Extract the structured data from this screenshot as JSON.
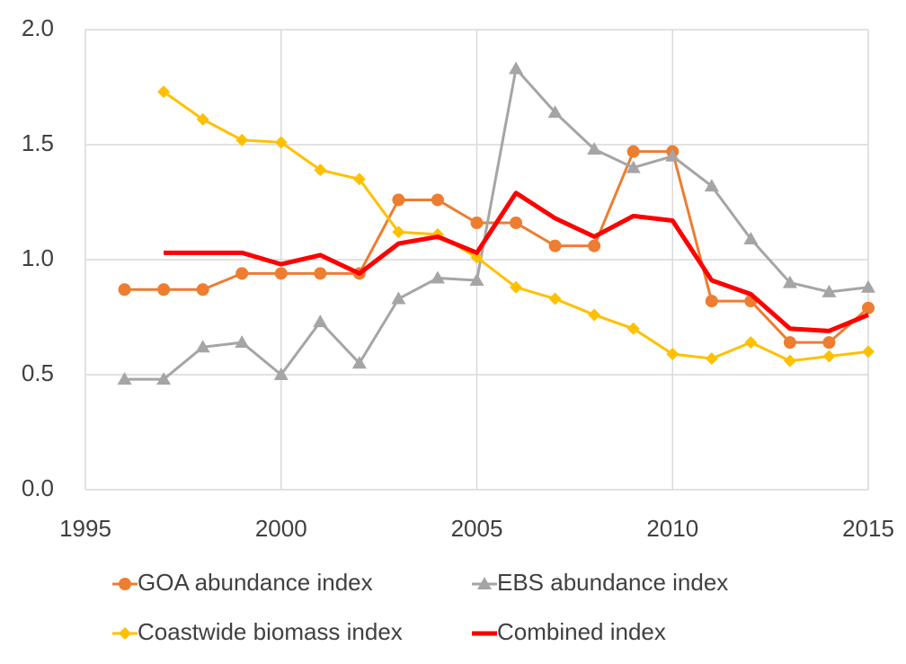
{
  "chart_data": {
    "type": "line",
    "x": [
      1996,
      1997,
      1998,
      1999,
      2000,
      2001,
      2002,
      2003,
      2004,
      2005,
      2006,
      2007,
      2008,
      2009,
      2010,
      2011,
      2012,
      2013,
      2014,
      2015
    ],
    "series": [
      {
        "name": "GOA abundance index",
        "color": "#ED7D31",
        "marker": "circle",
        "line_width": 3,
        "values": [
          0.87,
          0.87,
          0.87,
          0.94,
          0.94,
          0.94,
          0.94,
          1.26,
          1.26,
          1.16,
          1.16,
          1.06,
          1.06,
          1.47,
          1.47,
          0.82,
          0.82,
          0.64,
          0.64,
          0.79
        ]
      },
      {
        "name": "EBS abundance index",
        "color": "#A5A5A5",
        "marker": "triangle",
        "line_width": 3,
        "values": [
          0.48,
          0.48,
          0.62,
          0.64,
          0.5,
          0.73,
          0.55,
          0.83,
          0.92,
          0.91,
          1.83,
          1.64,
          1.48,
          1.4,
          1.45,
          1.32,
          1.09,
          0.9,
          0.86,
          0.88
        ]
      },
      {
        "name": "Coastwide biomass index",
        "color": "#FFC000",
        "marker": "diamond",
        "line_width": 3,
        "values": [
          null,
          1.73,
          1.61,
          1.52,
          1.51,
          1.39,
          1.35,
          1.12,
          1.11,
          1.01,
          0.88,
          0.83,
          0.76,
          0.7,
          0.59,
          0.57,
          0.64,
          0.56,
          0.58,
          0.6
        ]
      },
      {
        "name": "Combined index",
        "color": "#FF0000",
        "line_width": 5,
        "values": [
          null,
          1.03,
          1.03,
          1.03,
          0.98,
          1.02,
          0.94,
          1.07,
          1.1,
          1.03,
          1.29,
          1.18,
          1.1,
          1.19,
          1.17,
          0.91,
          0.85,
          0.7,
          0.69,
          0.76
        ]
      }
    ],
    "xlim": [
      1995,
      2015
    ],
    "xticks": [
      1995,
      2000,
      2005,
      2010,
      2015
    ],
    "ylim": [
      0,
      2
    ],
    "yticks": [
      {
        "value": 0,
        "label": "0.0"
      },
      0.5,
      {
        "value": 1,
        "label": "1.0"
      },
      1.5,
      {
        "value": 2,
        "label": "2.0"
      }
    ],
    "grid": true,
    "legend": "bottom"
  }
}
